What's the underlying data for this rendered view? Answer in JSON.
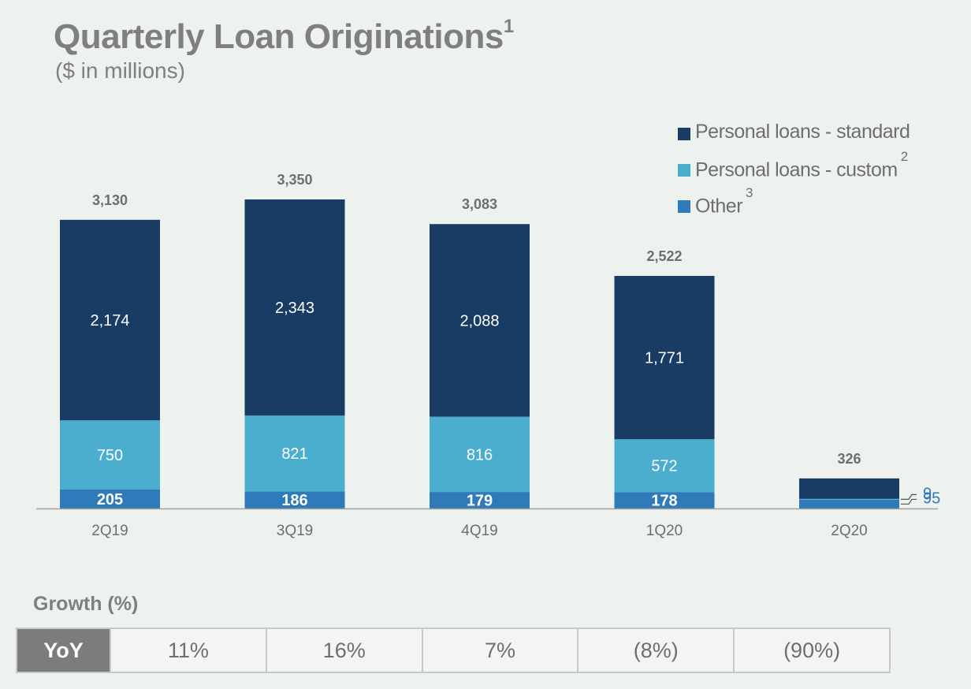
{
  "title": "Quarterly Loan Originations",
  "title_footnote": "1",
  "subtitle": "($ in millions)",
  "colors": {
    "standard": "#193c64",
    "custom": "#4baecf",
    "other": "#2f7ab8",
    "total_label": "#6e6e6e",
    "axis": "#a0a0a0",
    "callout": "#2f7ab8"
  },
  "chart_data": {
    "type": "bar",
    "stacked": true,
    "categories": [
      "2Q19",
      "3Q19",
      "4Q19",
      "1Q20",
      "2Q20"
    ],
    "series": [
      {
        "name": "Other",
        "footnote": "3",
        "color_key": "other",
        "values": [
          205,
          186,
          179,
          178,
          95
        ]
      },
      {
        "name": "Personal loans - custom",
        "footnote": "2",
        "color_key": "custom",
        "values": [
          750,
          821,
          816,
          572,
          9
        ]
      },
      {
        "name": "Personal loans - standard",
        "footnote": "",
        "color_key": "standard",
        "values": [
          2174,
          2343,
          2088,
          1771,
          222
        ]
      }
    ],
    "data_labels": {
      "standard": [
        "2,174",
        "2,343",
        "2,088",
        "1,771",
        ""
      ],
      "custom": [
        "750",
        "821",
        "816",
        "572",
        "9"
      ],
      "other": [
        "205",
        "186",
        "179",
        "178",
        "95"
      ]
    },
    "totals": [
      "3,130",
      "3,350",
      "3,083",
      "2,522",
      "326"
    ],
    "legend_position": "top-right",
    "grid": false,
    "ylim": [
      0,
      3350
    ]
  },
  "legend": [
    {
      "label": "Personal loans - standard",
      "sup": "",
      "color_key": "standard"
    },
    {
      "label": "Personal loans - custom",
      "sup": "2",
      "color_key": "custom"
    },
    {
      "label": "Other",
      "sup": "3",
      "color_key": "other"
    }
  ],
  "growth": {
    "title": "Growth (%)",
    "row_label": "YoY",
    "values": [
      "11%",
      "16%",
      "7%",
      "(8%)",
      "(90%)"
    ]
  }
}
